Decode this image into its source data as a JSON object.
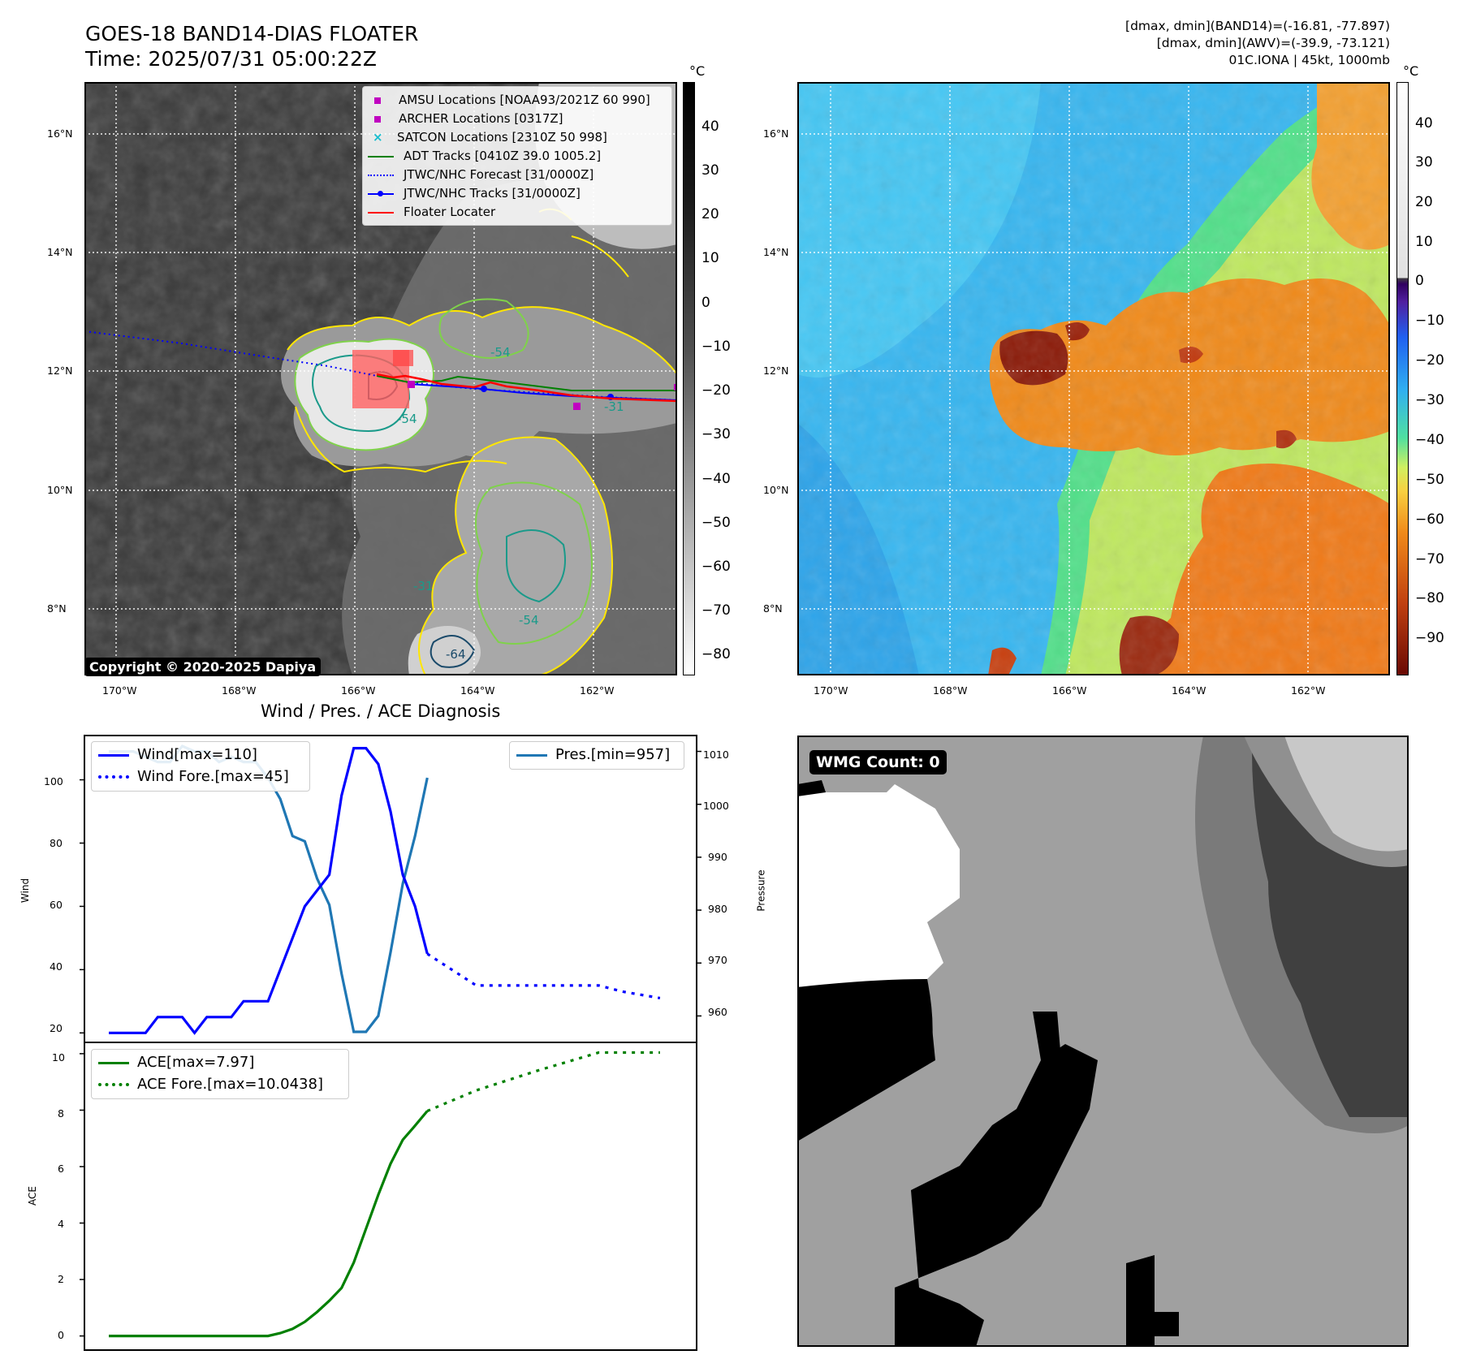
{
  "header": {
    "title_line1": "GOES-18 BAND14-DIAS FLOATER",
    "title_line2": "Time: 2025/07/31 05:00:22Z",
    "info_line1": "[dmax, dmin](BAND14)=(-16.81, -77.897)",
    "info_line2": "[dmax, dmin](AWV)=(-39.9, -73.121)",
    "info_line3": "01C.IONA | 45kt, 1000mb"
  },
  "map": {
    "lon_labels": [
      "170°W",
      "168°W",
      "166°W",
      "164°W",
      "162°W"
    ],
    "lat_labels": [
      "16°N",
      "14°N",
      "12°N",
      "10°N",
      "8°N"
    ],
    "contour_labels": [
      "-54",
      "-54",
      "-31",
      "-31",
      "-54",
      "-64"
    ],
    "copyright": "Copyright © 2020-2025 Dapiya",
    "legend": [
      {
        "label": "AMSU Locations [NOAA93/2021Z 60 990]",
        "marker": "square",
        "color": "#c000c0"
      },
      {
        "label": "ARCHER Locations [0317Z]",
        "marker": "square",
        "color": "#c000c0"
      },
      {
        "label": "SATCON Locations [2310Z 50 998]",
        "marker": "x",
        "color": "#17becf"
      },
      {
        "label": "ADT Tracks [0410Z 39.0 1005.2]",
        "marker": "line",
        "color": "#008000"
      },
      {
        "label": "JTWC/NHC Forecast [31/0000Z]",
        "marker": "dotted",
        "color": "#0000ff"
      },
      {
        "label": "JTWC/NHC Tracks [31/0000Z]",
        "marker": "line-dot",
        "color": "#0000ff"
      },
      {
        "label": "Floater Locater",
        "marker": "line",
        "color": "#ff0000"
      }
    ]
  },
  "colorbar_gray": {
    "unit": "°C",
    "ticks": [
      "40",
      "30",
      "20",
      "10",
      "0",
      "−10",
      "−20",
      "−30",
      "−40",
      "−50",
      "−60",
      "−70",
      "−80"
    ]
  },
  "colorbar_color": {
    "unit": "°C",
    "ticks": [
      "40",
      "30",
      "20",
      "10",
      "0",
      "−10",
      "−20",
      "−30",
      "−40",
      "−50",
      "−60",
      "−70",
      "−80",
      "−90"
    ]
  },
  "diag": {
    "title": "Wind / Pres. / ACE Diagnosis",
    "wind_ylabel": "Wind",
    "pres_ylabel": "Pressure",
    "ace_ylabel": "ACE",
    "wind_ticks": [
      "100",
      "80",
      "60",
      "40",
      "20"
    ],
    "pres_ticks": [
      "1010",
      "1000",
      "990",
      "980",
      "970",
      "960"
    ],
    "ace_ticks": [
      "10",
      "8",
      "6",
      "4",
      "2",
      "0"
    ],
    "legend_wind": "Wind[max=110]",
    "legend_wind_fore": "Wind Fore.[max=45]",
    "legend_pres": "Pres.[min=957]",
    "legend_ace": "ACE[max=7.97]",
    "legend_ace_fore": "ACE Fore.[max=10.0438]"
  },
  "wmg": {
    "label": "WMG Count: 0"
  },
  "chart_data": [
    {
      "type": "line",
      "title": "Wind / Pres. / ACE Diagnosis",
      "ylabel": "Wind",
      "ylim": [
        17,
        114
      ],
      "series": [
        {
          "name": "Wind[max=110]",
          "color": "#0000ff",
          "style": "solid",
          "x": [
            0,
            1,
            2,
            3,
            4,
            5,
            6,
            7,
            8,
            9,
            10,
            11,
            12,
            13,
            14,
            15,
            16,
            17,
            18,
            19,
            20,
            21,
            22,
            23,
            24,
            25,
            26
          ],
          "values": [
            20,
            20,
            20,
            20,
            25,
            25,
            25,
            20,
            25,
            25,
            25,
            30,
            30,
            30,
            40,
            50,
            60,
            65,
            70,
            95,
            110,
            110,
            105,
            90,
            70,
            60,
            45
          ]
        },
        {
          "name": "Wind Fore.[max=45]",
          "color": "#0000ff",
          "style": "dotted",
          "x": [
            26,
            30,
            40,
            42,
            45
          ],
          "values": [
            45,
            35,
            35,
            33,
            31
          ]
        }
      ]
    },
    {
      "type": "line",
      "ylabel": "Pressure",
      "ylim": [
        955,
        1013
      ],
      "series": [
        {
          "name": "Pres.[min=957]",
          "color": "#1f77b4",
          "style": "solid",
          "x": [
            0,
            1,
            2,
            3,
            4,
            5,
            6,
            7,
            8,
            9,
            10,
            11,
            12,
            13,
            14,
            15,
            16,
            17,
            18,
            19,
            20,
            21,
            22,
            23,
            24,
            25,
            26
          ],
          "values": [
            1010,
            1010,
            1010,
            1009,
            1008,
            1008,
            1011,
            1010,
            1010,
            1008,
            1009,
            1008,
            1008,
            1005,
            1001,
            994,
            993,
            986,
            981,
            968,
            957,
            957,
            960,
            972,
            985,
            994,
            1005
          ]
        }
      ]
    },
    {
      "type": "line",
      "ylabel": "ACE",
      "ylim": [
        -0.5,
        10.4
      ],
      "series": [
        {
          "name": "ACE[max=7.97]",
          "color": "#008000",
          "style": "solid",
          "x": [
            0,
            1,
            2,
            3,
            4,
            5,
            6,
            7,
            8,
            9,
            10,
            11,
            12,
            13,
            14,
            15,
            16,
            17,
            18,
            19,
            20,
            21,
            22,
            23,
            24,
            25,
            26
          ],
          "values": [
            0,
            0,
            0,
            0,
            0,
            0,
            0,
            0,
            0,
            0,
            0,
            0,
            0,
            0,
            0.1,
            0.25,
            0.5,
            0.85,
            1.25,
            1.7,
            2.6,
            3.8,
            5.0,
            6.1,
            6.95,
            7.45,
            7.97
          ]
        },
        {
          "name": "ACE Fore.[max=10.0438]",
          "color": "#008000",
          "style": "dotted",
          "x": [
            26,
            30,
            35,
            40,
            42,
            45
          ],
          "values": [
            7.97,
            8.7,
            9.4,
            10.04,
            10.04,
            10.04
          ]
        }
      ]
    }
  ]
}
